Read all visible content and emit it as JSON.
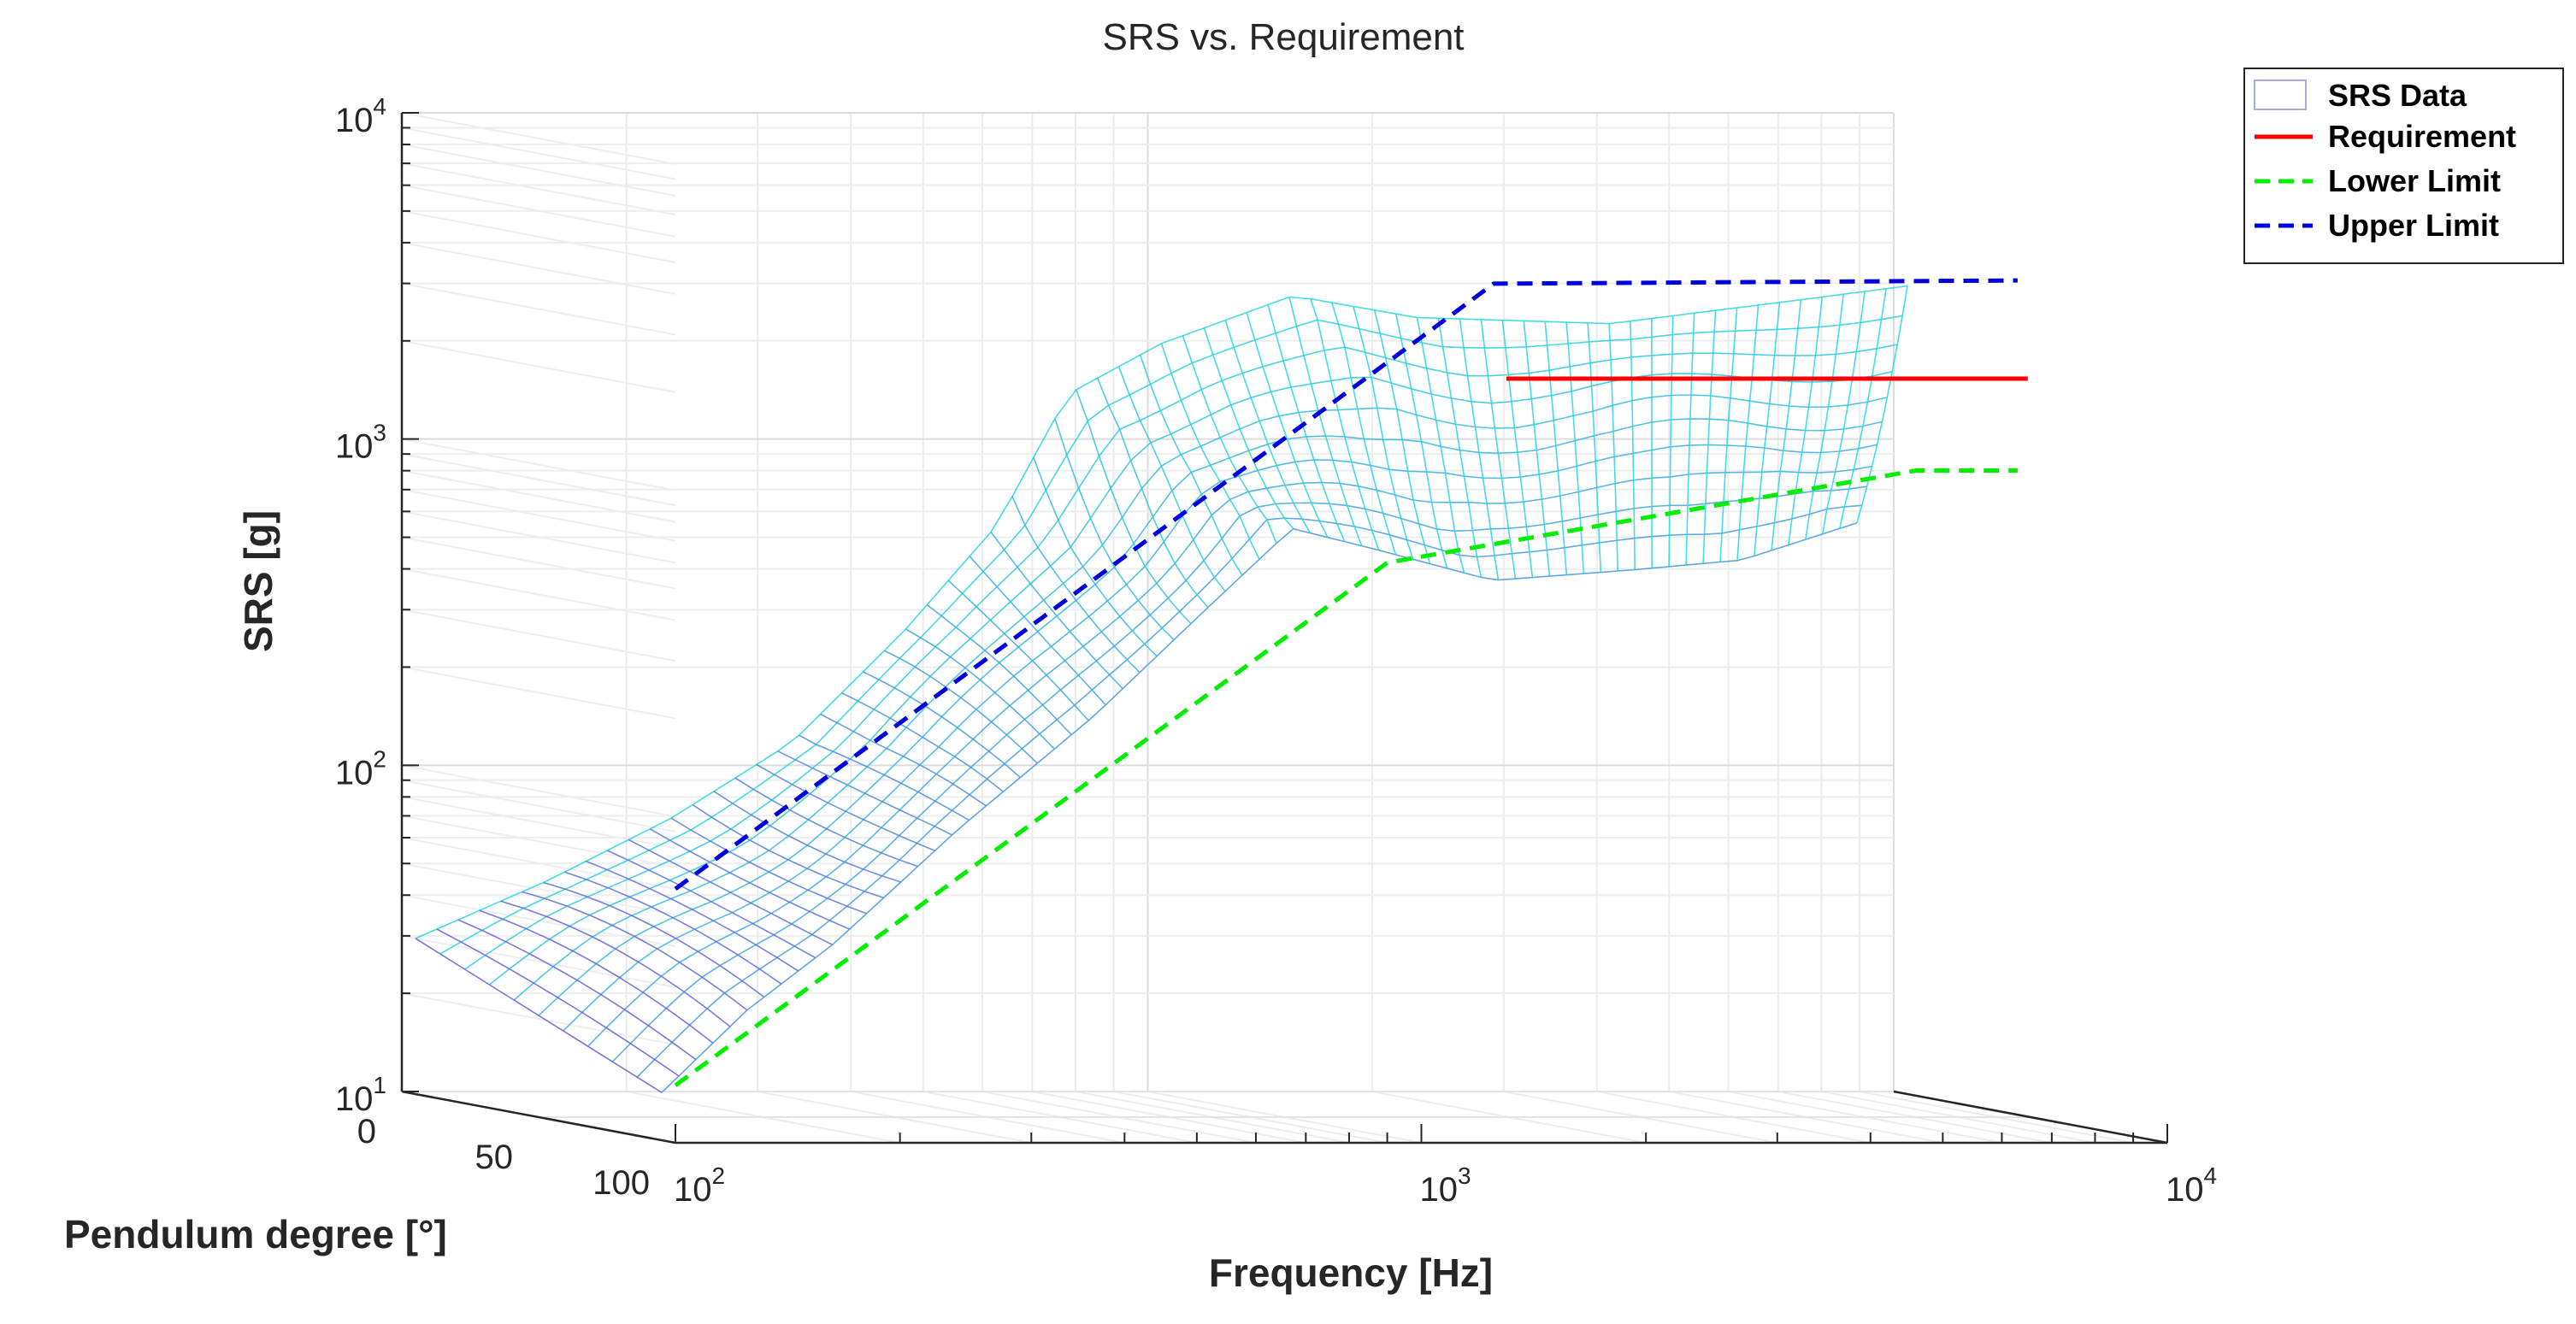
{
  "chart_data": {
    "type": "surface3d",
    "title": "SRS vs. Requirement",
    "xlabel": "Frequency [Hz]",
    "ylabel": "Pendulum degree [°]",
    "zlabel": "SRS [g]",
    "x_scale": "log",
    "z_scale": "log",
    "xlim": [
      100,
      10000
    ],
    "ylim": [
      0,
      100
    ],
    "zlim": [
      10,
      10000
    ],
    "x_ticks": [
      {
        "base": "10",
        "exp": "2",
        "value": 100
      },
      {
        "base": "10",
        "exp": "3",
        "value": 1000
      },
      {
        "base": "10",
        "exp": "4",
        "value": 10000
      }
    ],
    "y_ticks": [
      {
        "label": "0",
        "value": 0
      },
      {
        "label": "50",
        "value": 50
      },
      {
        "label": "100",
        "value": 100
      }
    ],
    "z_ticks": [
      {
        "base": "10",
        "exp": "1",
        "value": 10
      },
      {
        "base": "10",
        "exp": "2",
        "value": 100
      },
      {
        "base": "10",
        "exp": "3",
        "value": 1000
      },
      {
        "base": "10",
        "exp": "4",
        "value": 10000
      }
    ],
    "legend": {
      "position": "top-right",
      "entries": [
        {
          "label": "SRS Data",
          "style": "surface",
          "color": "#a9a9ee"
        },
        {
          "label": "Requirement",
          "style": "solid",
          "color": "#ff0000"
        },
        {
          "label": "Lower Limit",
          "style": "dashed",
          "color": "#00ee00"
        },
        {
          "label": "Upper Limit",
          "style": "dashed",
          "color": "#0000dd"
        }
      ]
    },
    "series": [
      {
        "name": "Requirement",
        "type": "line",
        "color": "#ff0000",
        "points": [
          {
            "x": 1300,
            "z": 2200
          },
          {
            "x": 6500,
            "z": 2200
          }
        ]
      },
      {
        "name": "Upper Limit",
        "type": "line",
        "color": "#0000dd",
        "points": [
          {
            "x": 100,
            "z": 60
          },
          {
            "x": 1250,
            "z": 4300
          },
          {
            "x": 6300,
            "z": 4400
          }
        ]
      },
      {
        "name": "Lower Limit",
        "type": "line",
        "color": "#00ee00",
        "points": [
          {
            "x": 100,
            "z": 15
          },
          {
            "x": 900,
            "z": 600
          },
          {
            "x": 4600,
            "z": 1150
          },
          {
            "x": 6300,
            "z": 1150
          }
        ]
      }
    ],
    "surface": {
      "name": "SRS Data",
      "front_edge": [
        {
          "x": 100,
          "z": 14
        },
        {
          "x": 130,
          "z": 25
        },
        {
          "x": 170,
          "z": 40
        },
        {
          "x": 250,
          "z": 90
        },
        {
          "x": 380,
          "z": 200
        },
        {
          "x": 540,
          "z": 430
        },
        {
          "x": 700,
          "z": 750
        },
        {
          "x": 900,
          "z": 650
        },
        {
          "x": 1300,
          "z": 520
        },
        {
          "x": 2000,
          "z": 560
        },
        {
          "x": 2800,
          "z": 600
        },
        {
          "x": 4000,
          "z": 780
        }
      ],
      "back_edge": [
        {
          "x": 100,
          "z": 30
        },
        {
          "x": 150,
          "z": 45
        },
        {
          "x": 220,
          "z": 70
        },
        {
          "x": 320,
          "z": 120
        },
        {
          "x": 450,
          "z": 260
        },
        {
          "x": 600,
          "z": 550
        },
        {
          "x": 750,
          "z": 1400
        },
        {
          "x": 1000,
          "z": 2000
        },
        {
          "x": 1500,
          "z": 2800
        },
        {
          "x": 2200,
          "z": 2400
        },
        {
          "x": 4000,
          "z": 2300
        },
        {
          "x": 7000,
          "z": 2700
        },
        {
          "x": 10000,
          "z": 3000
        }
      ]
    }
  }
}
